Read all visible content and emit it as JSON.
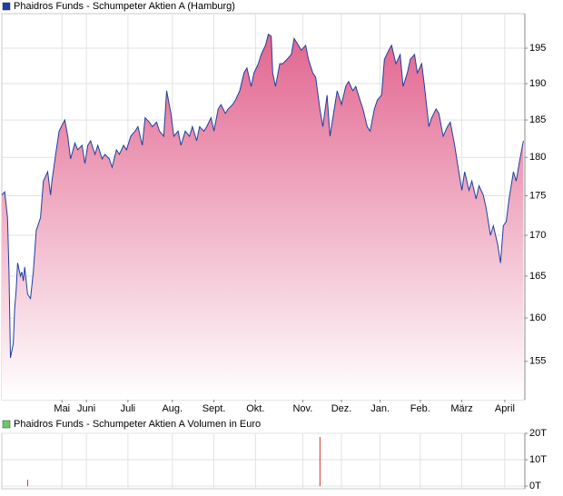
{
  "chart_data": [
    {
      "type": "area",
      "log_scale": true,
      "grid": true,
      "xlim": [
        0,
        365
      ],
      "ylim": [
        150.7,
        200
      ],
      "yticks": [
        155,
        160,
        165,
        170,
        175,
        180,
        185,
        190,
        195
      ],
      "xticks": [
        {
          "value": 42,
          "label": "Mai"
        },
        {
          "value": 59,
          "label": "Juni"
        },
        {
          "value": 88,
          "label": "Juli"
        },
        {
          "value": 119,
          "label": "Aug."
        },
        {
          "value": 148,
          "label": "Sept."
        },
        {
          "value": 177,
          "label": "Okt."
        },
        {
          "value": 210,
          "label": "Nov."
        },
        {
          "value": 237,
          "label": "Dez."
        },
        {
          "value": 264,
          "label": "Jan."
        },
        {
          "value": 292,
          "label": "Feb."
        },
        {
          "value": 321,
          "label": "März"
        },
        {
          "value": 351,
          "label": "April"
        }
      ],
      "series": [
        {
          "name": "Phaidros Funds - Schumpeter Aktien A (Hamburg)",
          "color": "#1f3f9f",
          "fill_color": "#e2658f",
          "x": [
            0,
            2,
            4,
            5,
            6,
            8,
            9,
            10,
            11,
            13,
            14,
            15,
            16,
            18,
            20,
            22,
            24,
            27,
            29,
            32,
            34,
            35,
            38,
            40,
            42,
            44,
            46,
            48,
            51,
            53,
            56,
            58,
            60,
            62,
            65,
            67,
            70,
            72,
            75,
            77,
            80,
            82,
            85,
            87,
            90,
            93,
            95,
            98,
            100,
            103,
            105,
            108,
            110,
            113,
            115,
            118,
            120,
            123,
            125,
            128,
            131,
            133,
            136,
            138,
            141,
            143,
            146,
            148,
            151,
            153,
            156,
            158,
            161,
            163,
            166,
            169,
            171,
            174,
            176,
            179,
            181,
            184,
            186,
            188,
            189,
            191,
            194,
            196,
            199,
            202,
            204,
            207,
            209,
            212,
            214,
            217,
            219,
            222,
            224,
            227,
            229,
            232,
            234,
            237,
            240,
            242,
            245,
            247,
            250,
            252,
            255,
            257,
            260,
            262,
            265,
            267,
            270,
            272,
            275,
            278,
            280,
            283,
            285,
            288,
            290,
            293,
            295,
            298,
            300,
            303,
            305,
            308,
            311,
            313,
            316,
            318,
            321,
            323,
            326,
            328,
            331,
            333,
            336,
            338,
            341,
            343,
            346,
            348,
            350,
            352,
            354,
            357,
            359,
            361,
            364
          ],
          "values": [
            175.1,
            175.5,
            172.2,
            165.5,
            155.4,
            157.0,
            161.2,
            163.3,
            166.6,
            165.0,
            165.5,
            164.4,
            166.1,
            162.8,
            162.3,
            165.5,
            170.6,
            172.2,
            176.9,
            178.1,
            175.1,
            176.9,
            181.0,
            183.5,
            184.3,
            185.0,
            182.8,
            179.8,
            181.9,
            181.0,
            181.6,
            179.2,
            181.6,
            182.2,
            180.4,
            181.6,
            179.8,
            180.4,
            179.8,
            178.7,
            181.0,
            180.4,
            181.6,
            181.0,
            182.8,
            183.5,
            184.1,
            181.6,
            185.3,
            184.7,
            184.1,
            184.7,
            183.5,
            182.8,
            189.0,
            185.9,
            182.8,
            183.5,
            181.6,
            183.5,
            182.8,
            184.1,
            182.2,
            184.1,
            183.5,
            184.1,
            185.3,
            183.5,
            186.5,
            187.1,
            185.9,
            186.5,
            187.1,
            187.7,
            189.0,
            191.5,
            192.2,
            189.6,
            191.5,
            192.8,
            194.1,
            195.4,
            197.0,
            196.7,
            191.5,
            189.6,
            192.8,
            192.8,
            193.4,
            194.1,
            196.4,
            195.4,
            194.7,
            195.4,
            193.4,
            191.5,
            190.9,
            186.5,
            184.1,
            188.4,
            182.8,
            186.5,
            189.0,
            187.1,
            189.6,
            190.3,
            189.0,
            189.6,
            187.7,
            186.5,
            184.1,
            183.5,
            186.5,
            187.7,
            188.4,
            193.4,
            194.7,
            195.4,
            192.8,
            194.1,
            189.6,
            191.5,
            193.4,
            194.1,
            191.5,
            192.8,
            189.6,
            184.1,
            185.3,
            186.5,
            185.9,
            182.8,
            184.1,
            184.7,
            181.6,
            179.2,
            175.7,
            178.1,
            175.7,
            176.9,
            174.6,
            176.3,
            175.1,
            173.4,
            170.0,
            171.2,
            168.9,
            166.6,
            171.2,
            171.7,
            174.6,
            178.1,
            176.9,
            179.2,
            182.2
          ]
        }
      ]
    },
    {
      "type": "bar",
      "grid": true,
      "xlim": [
        0,
        365
      ],
      "ylim": [
        -1,
        20
      ],
      "yticks": [
        {
          "value": 0,
          "label": "0T"
        },
        {
          "value": 10,
          "label": "10T"
        },
        {
          "value": 20,
          "label": "20T"
        }
      ],
      "series": [
        {
          "name": "Phaidros Funds - Schumpeter Aktien A Volumen in Euro",
          "color": "#d03030",
          "legend_color": "#66cc66",
          "x": [
            18,
            222
          ],
          "values": [
            2.4,
            18.6
          ]
        }
      ]
    }
  ]
}
